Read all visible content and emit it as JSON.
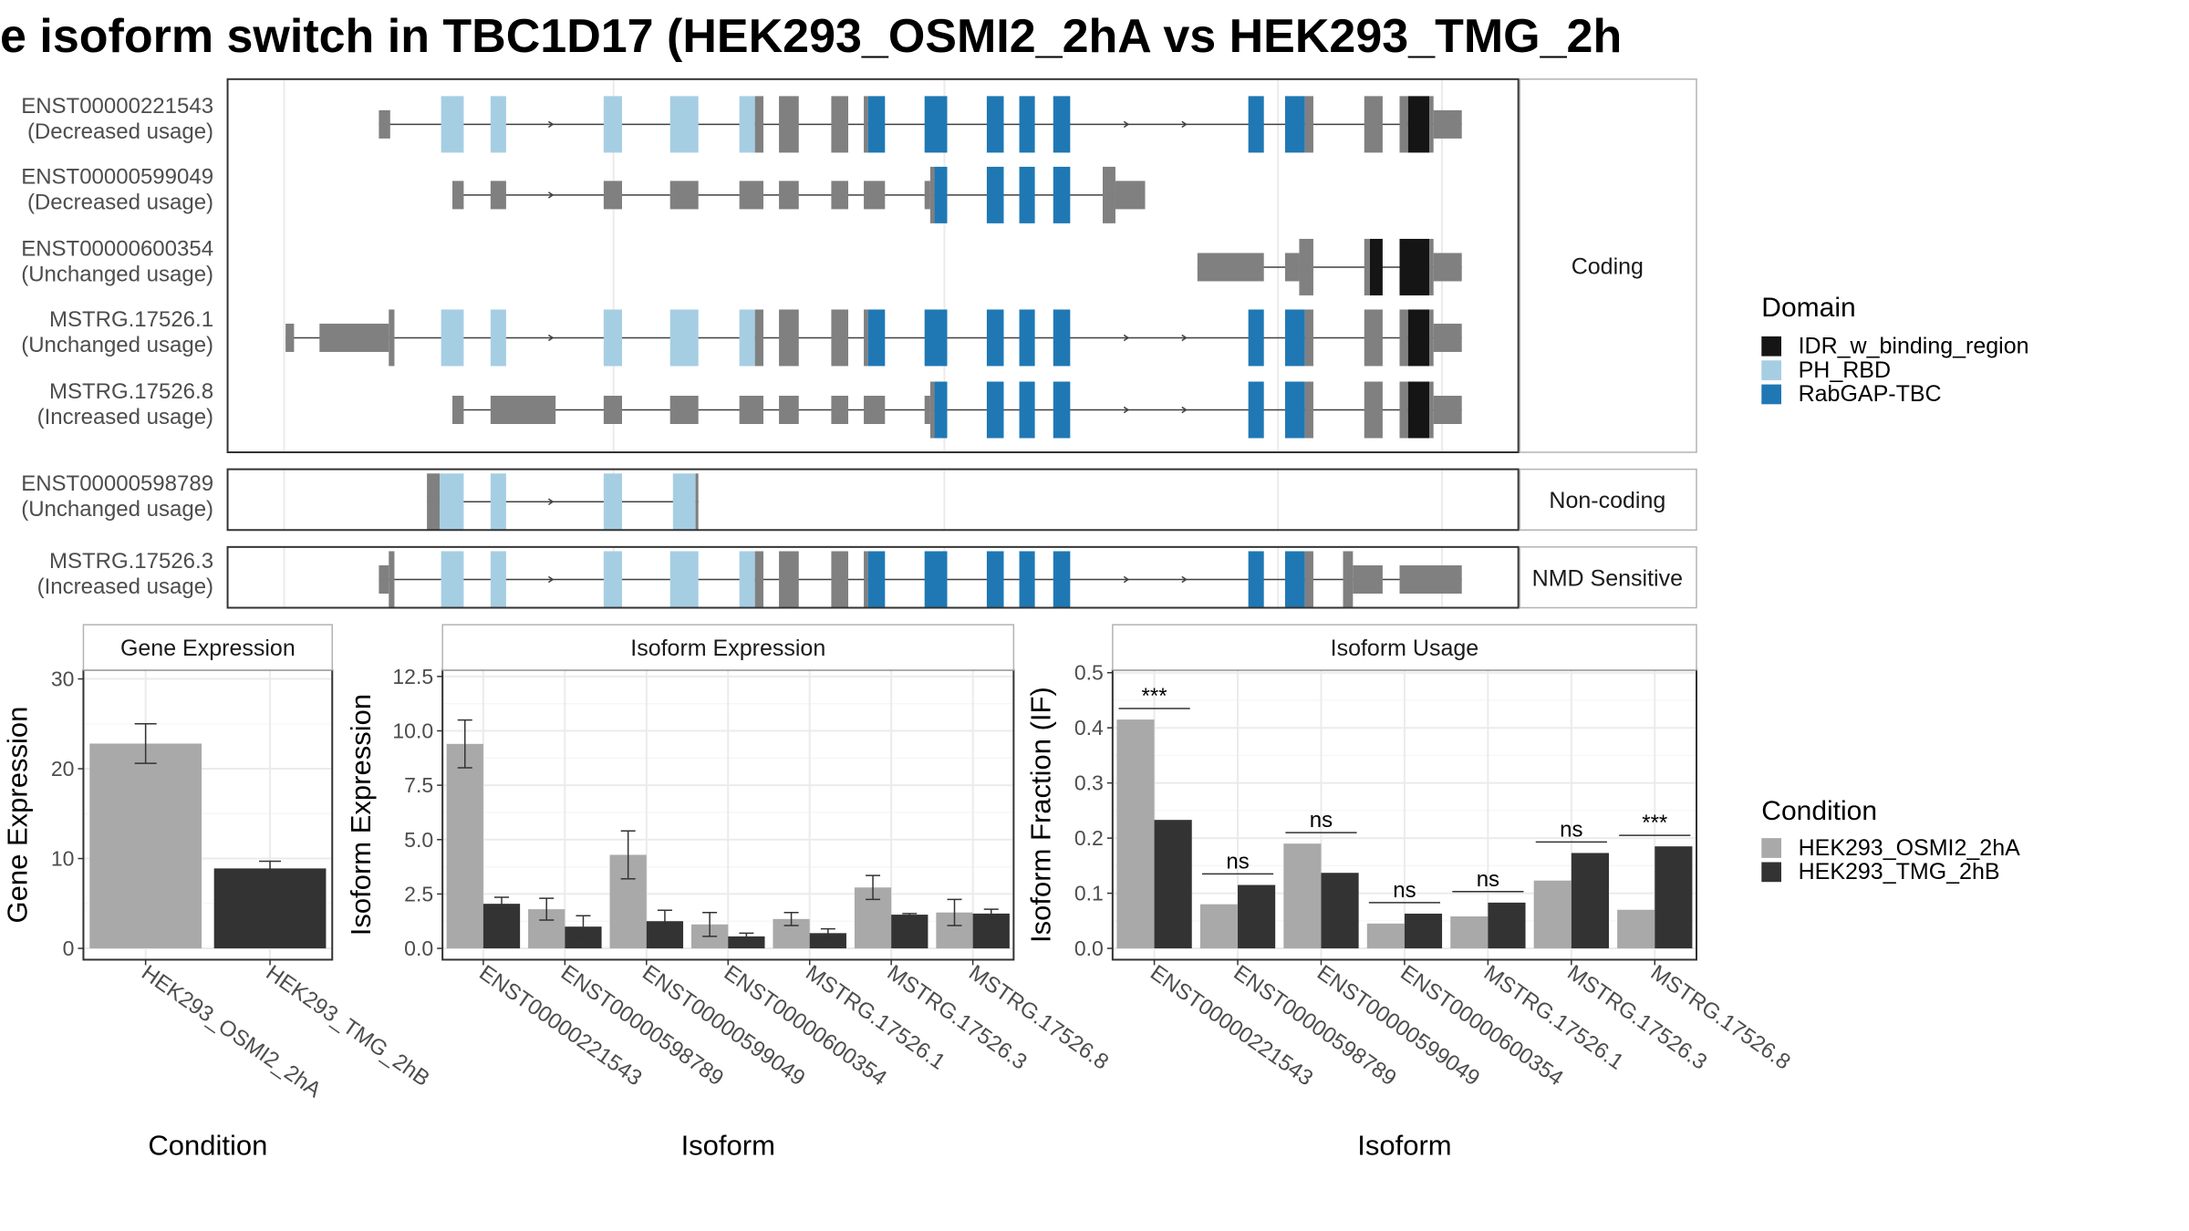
{
  "title": "e isoform switch in TBC1D17 (HEK293_OSMI2_2hA vs HEK293_TMG_2h",
  "colors": {
    "IDR_w_binding_region": "#151515",
    "PH_RBD": "#a6cee3",
    "RabGAP-TBC": "#1f78b4",
    "noncoding_exon": "#808080",
    "cond1": "#a9a9a9",
    "cond2": "#333333",
    "intron": "#404040"
  },
  "structure": {
    "panels": [
      {
        "label": "Coding",
        "tracks": [
          {
            "id": "ENST00000221543",
            "usage": "(Decreased usage)",
            "exons": [
              [
                270,
                280
              ],
              [
                312,
                328
              ],
              [
                347,
                358
              ],
              [
                427,
                440
              ],
              [
                474,
                494
              ],
              [
                523,
                534
              ],
              [
                534,
                540
              ],
              [
                551,
                565
              ],
              [
                588,
                600
              ],
              [
                611,
                614
              ],
              [
                614,
                626
              ],
              [
                654,
                670
              ],
              [
                698,
                710
              ],
              [
                721,
                732
              ],
              [
                745,
                757
              ],
              [
                883,
                894
              ],
              [
                909,
                923
              ],
              [
                923,
                929
              ],
              [
                965,
                978
              ],
              [
                990,
                996
              ],
              [
                996,
                1011
              ],
              [
                1011,
                1014
              ],
              [
                1014,
                1034
              ]
            ],
            "tall": [
              [
                312,
                328,
                "PH_RBD"
              ],
              [
                347,
                358,
                "PH_RBD"
              ],
              [
                427,
                440,
                "PH_RBD"
              ],
              [
                474,
                494,
                "PH_RBD"
              ],
              [
                523,
                534,
                "PH_RBD"
              ],
              [
                534,
                540,
                "grey"
              ],
              [
                551,
                565,
                "grey"
              ],
              [
                588,
                600,
                "grey"
              ],
              [
                611,
                614,
                "grey"
              ],
              [
                614,
                626,
                "RabGAP-TBC"
              ],
              [
                654,
                670,
                "RabGAP-TBC"
              ],
              [
                698,
                710,
                "RabGAP-TBC"
              ],
              [
                721,
                732,
                "RabGAP-TBC"
              ],
              [
                745,
                757,
                "RabGAP-TBC"
              ],
              [
                883,
                894,
                "RabGAP-TBC"
              ],
              [
                909,
                923,
                "RabGAP-TBC"
              ],
              [
                923,
                929,
                "grey"
              ],
              [
                965,
                978,
                "grey"
              ],
              [
                990,
                996,
                "grey"
              ],
              [
                996,
                1011,
                "IDR_w_binding_region"
              ],
              [
                1011,
                1014,
                "grey"
              ]
            ],
            "short": [
              [
                268,
                276
              ],
              [
                1014,
                1034
              ]
            ],
            "arrows": [
              390,
              797,
              838
            ]
          },
          {
            "id": "ENST00000599049",
            "usage": "(Decreased usage)",
            "exons": [],
            "tall": [
              [
                658,
                661,
                "grey"
              ],
              [
                661,
                670,
                "RabGAP-TBC"
              ],
              [
                698,
                710,
                "RabGAP-TBC"
              ],
              [
                721,
                732,
                "RabGAP-TBC"
              ],
              [
                745,
                757,
                "RabGAP-TBC"
              ],
              [
                780,
                789,
                "grey"
              ]
            ],
            "short": [
              [
                320,
                328
              ],
              [
                347,
                358
              ],
              [
                427,
                440
              ],
              [
                474,
                494
              ],
              [
                523,
                540
              ],
              [
                551,
                565
              ],
              [
                588,
                600
              ],
              [
                611,
                626
              ],
              [
                654,
                658
              ],
              [
                789,
                810
              ]
            ],
            "arrows": [
              390
            ]
          },
          {
            "id": "ENST00000600354",
            "usage": "(Unchanged usage)",
            "exons": [],
            "tall": [
              [
                919,
                929,
                "grey"
              ],
              [
                965,
                969,
                "grey"
              ],
              [
                969,
                978,
                "IDR_w_binding_region"
              ],
              [
                990,
                1011,
                "IDR_w_binding_region"
              ],
              [
                1011,
                1014,
                "grey"
              ]
            ],
            "short": [
              [
                847,
                894
              ],
              [
                909,
                919
              ],
              [
                1014,
                1034
              ]
            ],
            "arrows": []
          },
          {
            "id": "MSTRG.17526.1",
            "usage": "(Unchanged usage)",
            "exons": [],
            "tall": [
              [
                275,
                279,
                "grey"
              ],
              [
                312,
                328,
                "PH_RBD"
              ],
              [
                347,
                358,
                "PH_RBD"
              ],
              [
                427,
                440,
                "PH_RBD"
              ],
              [
                474,
                494,
                "PH_RBD"
              ],
              [
                523,
                534,
                "PH_RBD"
              ],
              [
                534,
                540,
                "grey"
              ],
              [
                551,
                565,
                "grey"
              ],
              [
                588,
                600,
                "grey"
              ],
              [
                611,
                614,
                "grey"
              ],
              [
                614,
                626,
                "RabGAP-TBC"
              ],
              [
                654,
                670,
                "RabGAP-TBC"
              ],
              [
                698,
                710,
                "RabGAP-TBC"
              ],
              [
                721,
                732,
                "RabGAP-TBC"
              ],
              [
                745,
                757,
                "RabGAP-TBC"
              ],
              [
                883,
                894,
                "RabGAP-TBC"
              ],
              [
                909,
                923,
                "RabGAP-TBC"
              ],
              [
                923,
                929,
                "grey"
              ],
              [
                965,
                978,
                "grey"
              ],
              [
                990,
                996,
                "grey"
              ],
              [
                996,
                1011,
                "IDR_w_binding_region"
              ],
              [
                1011,
                1014,
                "grey"
              ]
            ],
            "short": [
              [
                202,
                208
              ],
              [
                226,
                275
              ],
              [
                1014,
                1034
              ]
            ],
            "arrows": [
              390,
              797,
              838
            ]
          },
          {
            "id": "MSTRG.17526.8",
            "usage": "(Increased usage)",
            "exons": [],
            "tall": [
              [
                658,
                661,
                "grey"
              ],
              [
                661,
                670,
                "RabGAP-TBC"
              ],
              [
                698,
                710,
                "RabGAP-TBC"
              ],
              [
                721,
                732,
                "RabGAP-TBC"
              ],
              [
                745,
                757,
                "RabGAP-TBC"
              ],
              [
                883,
                894,
                "RabGAP-TBC"
              ],
              [
                909,
                923,
                "RabGAP-TBC"
              ],
              [
                923,
                929,
                "grey"
              ],
              [
                965,
                978,
                "grey"
              ],
              [
                990,
                996,
                "grey"
              ],
              [
                996,
                1011,
                "IDR_w_binding_region"
              ],
              [
                1011,
                1014,
                "grey"
              ]
            ],
            "short": [
              [
                320,
                328
              ],
              [
                347,
                393
              ],
              [
                427,
                440
              ],
              [
                474,
                494
              ],
              [
                523,
                540
              ],
              [
                551,
                565
              ],
              [
                588,
                600
              ],
              [
                611,
                626
              ],
              [
                654,
                658
              ],
              [
                1014,
                1034
              ]
            ],
            "arrows": [
              797,
              838
            ]
          }
        ]
      },
      {
        "label": "Non-coding",
        "tracks": [
          {
            "id": "ENST00000598789",
            "usage": "(Unchanged usage)",
            "exons": [],
            "tall": [
              [
                302,
                311,
                "grey"
              ],
              [
                311,
                328,
                "PH_RBD"
              ],
              [
                347,
                358,
                "PH_RBD"
              ],
              [
                427,
                440,
                "PH_RBD"
              ],
              [
                476,
                492,
                "PH_RBD"
              ],
              [
                492,
                494,
                "grey"
              ]
            ],
            "short": [],
            "arrows": [
              390
            ]
          }
        ]
      },
      {
        "label": "NMD Sensitive",
        "tracks": [
          {
            "id": "MSTRG.17526.3",
            "usage": "(Increased usage)",
            "exons": [],
            "tall": [
              [
                275,
                279,
                "grey"
              ],
              [
                312,
                328,
                "PH_RBD"
              ],
              [
                347,
                358,
                "PH_RBD"
              ],
              [
                427,
                440,
                "PH_RBD"
              ],
              [
                474,
                494,
                "PH_RBD"
              ],
              [
                523,
                534,
                "PH_RBD"
              ],
              [
                534,
                540,
                "grey"
              ],
              [
                551,
                565,
                "grey"
              ],
              [
                588,
                600,
                "grey"
              ],
              [
                611,
                614,
                "grey"
              ],
              [
                614,
                626,
                "RabGAP-TBC"
              ],
              [
                654,
                670,
                "RabGAP-TBC"
              ],
              [
                698,
                710,
                "RabGAP-TBC"
              ],
              [
                721,
                732,
                "RabGAP-TBC"
              ],
              [
                745,
                757,
                "RabGAP-TBC"
              ],
              [
                883,
                894,
                "RabGAP-TBC"
              ],
              [
                909,
                923,
                "RabGAP-TBC"
              ],
              [
                923,
                929,
                "grey"
              ],
              [
                950,
                957,
                "grey"
              ]
            ],
            "short": [
              [
                268,
                275
              ],
              [
                957,
                978
              ],
              [
                990,
                1034
              ]
            ],
            "arrows": [
              390,
              797,
              838
            ]
          }
        ]
      }
    ]
  },
  "domain_legend": {
    "title": "Domain",
    "items": [
      "IDR_w_binding_region",
      "PH_RBD",
      "RabGAP-TBC"
    ]
  },
  "condition_legend": {
    "title": "Condition",
    "items": [
      "HEK293_OSMI2_2hA",
      "HEK293_TMG_2hB"
    ]
  },
  "chart_data": [
    {
      "type": "bar",
      "title": "Gene Expression",
      "xlabel": "Condition",
      "ylabel": "Gene Expression",
      "ylim": [
        0,
        31
      ],
      "yticks": [
        0,
        10,
        20,
        30
      ],
      "categories": [
        "HEK293_OSMI2_2hA",
        "HEK293_TMG_2hB"
      ],
      "values": [
        22.8,
        8.9
      ],
      "errors": [
        [
          20.6,
          25.0
        ],
        [
          8.1,
          9.7
        ]
      ]
    },
    {
      "type": "bar",
      "title": "Isoform Expression",
      "xlabel": "Isoform",
      "ylabel": "Isoform Expression",
      "ylim": [
        0,
        12.8
      ],
      "yticks": [
        0.0,
        2.5,
        5.0,
        7.5,
        10.0,
        12.5
      ],
      "categories": [
        "ENST00000221543",
        "ENST00000598789",
        "ENST00000599049",
        "ENST00000600354",
        "MSTRG.17526.1",
        "MSTRG.17526.3",
        "MSTRG.17526.8"
      ],
      "series": [
        {
          "name": "HEK293_OSMI2_2hA",
          "values": [
            9.4,
            1.8,
            4.3,
            1.1,
            1.35,
            2.8,
            1.65
          ],
          "errors": [
            [
              8.3,
              10.5
            ],
            [
              1.3,
              2.3
            ],
            [
              3.2,
              5.4
            ],
            [
              0.55,
              1.65
            ],
            [
              1.05,
              1.65
            ],
            [
              2.25,
              3.35
            ],
            [
              1.05,
              2.25
            ]
          ]
        },
        {
          "name": "HEK293_TMG_2hB",
          "values": [
            2.05,
            1.0,
            1.25,
            0.55,
            0.7,
            1.55,
            1.6
          ],
          "errors": [
            [
              1.75,
              2.35
            ],
            [
              0.5,
              1.5
            ],
            [
              0.75,
              1.75
            ],
            [
              0.4,
              0.7
            ],
            [
              0.5,
              0.9
            ],
            [
              1.5,
              1.6
            ],
            [
              1.4,
              1.8
            ]
          ]
        }
      ]
    },
    {
      "type": "bar",
      "title": "Isoform Usage",
      "xlabel": "Isoform",
      "ylabel": "Isoform Fraction (IF)",
      "ylim": [
        0,
        0.505
      ],
      "yticks": [
        0.0,
        0.1,
        0.2,
        0.3,
        0.4,
        0.5
      ],
      "categories": [
        "ENST00000221543",
        "ENST00000598789",
        "ENST00000599049",
        "ENST00000600354",
        "MSTRG.17526.1",
        "MSTRG.17526.3",
        "MSTRG.17526.8"
      ],
      "series": [
        {
          "name": "HEK293_OSMI2_2hA",
          "values": [
            0.415,
            0.08,
            0.19,
            0.045,
            0.058,
            0.123,
            0.07
          ]
        },
        {
          "name": "HEK293_TMG_2hB",
          "values": [
            0.233,
            0.115,
            0.137,
            0.063,
            0.083,
            0.173,
            0.185
          ]
        }
      ],
      "significance": [
        "***",
        "ns",
        "ns",
        "ns",
        "ns",
        "ns",
        "***"
      ],
      "sig_line_y": [
        0.435,
        0.135,
        0.21,
        0.083,
        0.103,
        0.193,
        0.205
      ]
    }
  ]
}
